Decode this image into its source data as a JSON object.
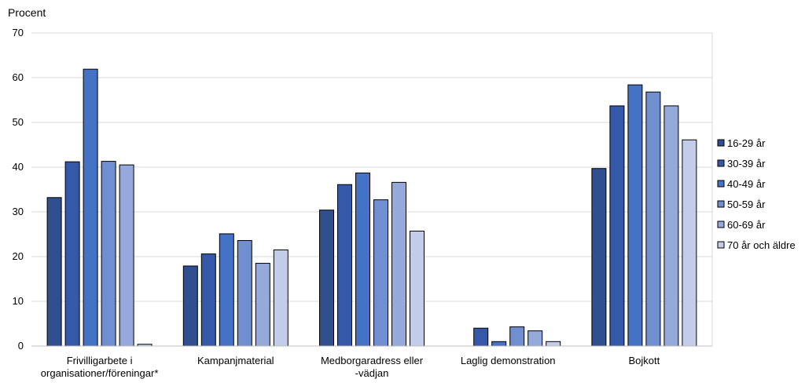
{
  "chart_data": {
    "type": "bar",
    "ylabel": "Procent",
    "ylim": [
      0,
      70
    ],
    "yticks": [
      0,
      10,
      20,
      30,
      40,
      50,
      60,
      70
    ],
    "grid": true,
    "legend_position": "right",
    "categories": [
      [
        "Frivilligarbete i",
        "organisationer/föreningar*"
      ],
      [
        "Kampanjmaterial"
      ],
      [
        "Medborgaradress eller",
        "-vädjan"
      ],
      [
        "Laglig demonstration"
      ],
      [
        "Bojkott"
      ]
    ],
    "series": [
      {
        "name": "16-29 år",
        "color": "#2f4f8f",
        "values": [
          33.2,
          17.9,
          30.4,
          null,
          39.7
        ]
      },
      {
        "name": "30-39 år",
        "color": "#3559a8",
        "values": [
          41.2,
          20.6,
          36.1,
          4.0,
          53.7
        ]
      },
      {
        "name": "40-49 år",
        "color": "#4472c4",
        "values": [
          61.9,
          25.1,
          38.7,
          1.0,
          58.4
        ]
      },
      {
        "name": "50-59 år",
        "color": "#6f8fd0",
        "values": [
          41.3,
          23.6,
          32.7,
          4.3,
          56.8
        ]
      },
      {
        "name": "60-69 år",
        "color": "#95a9db",
        "values": [
          40.5,
          18.5,
          36.6,
          3.4,
          53.7
        ]
      },
      {
        "name": "70 år och äldre",
        "color": "#c3cde9",
        "values": [
          0.4,
          21.5,
          25.7,
          1.0,
          46.1
        ]
      }
    ]
  }
}
